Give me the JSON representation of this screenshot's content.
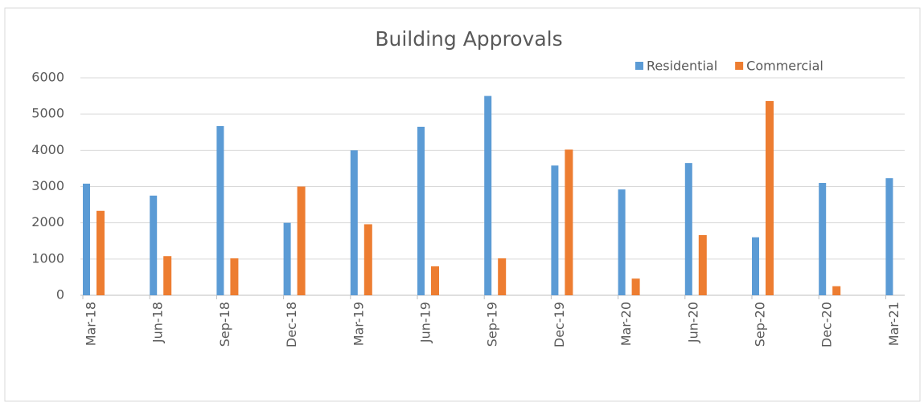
{
  "chart_data": {
    "type": "bar",
    "title": "Building Approvals",
    "categories": [
      "Mar-18",
      "Jun-18",
      "Sep-18",
      "Dec-18",
      "Mar-19",
      "Jun-19",
      "Sep-19",
      "Dec-19",
      "Mar-20",
      "Jun-20",
      "Sep-20",
      "Dec-20",
      "Mar-21"
    ],
    "series": [
      {
        "name": "Residential",
        "color": "#5b9bd5",
        "values": [
          3080,
          2750,
          4670,
          2000,
          4000,
          4650,
          5500,
          3580,
          2920,
          3650,
          1600,
          3100,
          3230
        ]
      },
      {
        "name": "Commercial",
        "color": "#ed7d31",
        "values": [
          2330,
          1080,
          1020,
          3000,
          1960,
          800,
          1020,
          4020,
          460,
          1660,
          5360,
          250,
          null
        ]
      }
    ],
    "ylim": [
      0,
      6000
    ],
    "yticks": [
      0,
      1000,
      2000,
      3000,
      4000,
      5000,
      6000
    ],
    "grid": true,
    "legend": "top-right"
  }
}
